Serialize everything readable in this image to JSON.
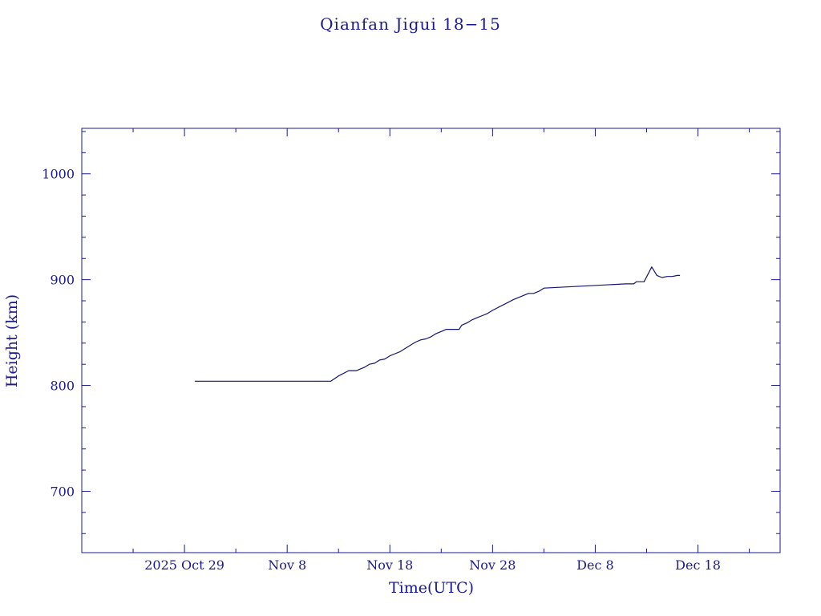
{
  "chart_data": {
    "type": "line",
    "title": "Qianfan Jigui 18−15",
    "xlabel": "Time(UTC)",
    "ylabel": "Height (km)",
    "x_type": "date",
    "xlim": [
      "2025-10-19",
      "2025-12-26"
    ],
    "ylim": [
      642,
      1043
    ],
    "x_ticks": [
      {
        "date": "2025-10-29",
        "label": "2025 Oct 29"
      },
      {
        "date": "2025-11-08",
        "label": "Nov  8"
      },
      {
        "date": "2025-11-18",
        "label": "Nov 18"
      },
      {
        "date": "2025-11-28",
        "label": "Nov 28"
      },
      {
        "date": "2025-12-08",
        "label": "Dec  8"
      },
      {
        "date": "2025-12-18",
        "label": "Dec 18"
      }
    ],
    "x_minor_tick_dates": [
      "2025-10-24",
      "2025-11-03",
      "2025-11-13",
      "2025-11-23",
      "2025-12-03",
      "2025-12-13",
      "2025-12-23"
    ],
    "y_ticks": [
      700,
      800,
      900,
      1000
    ],
    "y_minor_step": 20,
    "grid": false,
    "legend": "none",
    "colors": {
      "axis": "#1a1a8f",
      "series": "#14146e"
    },
    "series": [
      {
        "x": [
          "2025-10-30T00:00",
          "2025-11-12T06:00",
          "2025-11-13T00:00",
          "2025-11-14T00:00",
          "2025-11-14T18:00",
          "2025-11-15T12:00",
          "2025-11-16T00:00",
          "2025-11-16T12:00",
          "2025-11-17T00:00",
          "2025-11-17T12:00",
          "2025-11-18T00:00",
          "2025-11-18T12:00",
          "2025-11-19T00:00",
          "2025-11-20T00:00",
          "2025-11-20T12:00",
          "2025-11-21T00:00",
          "2025-11-21T12:00",
          "2025-11-22T00:00",
          "2025-11-22T12:00",
          "2025-11-23T00:00",
          "2025-11-23T12:00",
          "2025-11-24T00:00",
          "2025-11-24T18:00",
          "2025-11-25T00:00",
          "2025-11-25T12:00",
          "2025-11-26T00:00",
          "2025-11-26T12:00",
          "2025-11-27T00:00",
          "2025-11-27T12:00",
          "2025-11-28T00:00",
          "2025-11-29T00:00",
          "2025-11-30T00:00",
          "2025-12-01T00:00",
          "2025-12-01T12:00",
          "2025-12-02T00:00",
          "2025-12-02T12:00",
          "2025-12-03T00:00",
          "2025-12-11T00:00",
          "2025-12-11T18:00",
          "2025-12-12T00:00",
          "2025-12-12T18:00",
          "2025-12-13T12:00",
          "2025-12-14T00:00",
          "2025-12-14T12:00",
          "2025-12-15T00:00",
          "2025-12-15T12:00",
          "2025-12-16T00:00",
          "2025-12-16T06:00"
        ],
        "y": [
          804,
          804,
          809,
          814,
          814,
          817,
          820,
          821,
          824,
          825,
          828,
          830,
          832,
          838,
          841,
          843,
          844,
          846,
          849,
          851,
          853,
          853,
          853,
          857,
          859,
          862,
          864,
          866,
          868,
          871,
          876,
          881,
          885,
          887,
          887,
          889,
          892,
          896,
          896,
          898,
          898,
          912,
          904,
          902,
          903,
          903,
          904,
          904
        ]
      }
    ]
  }
}
